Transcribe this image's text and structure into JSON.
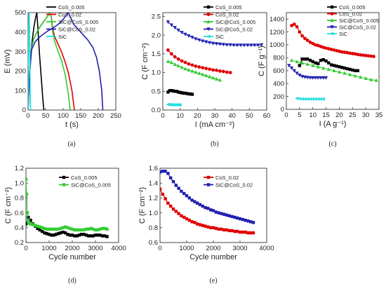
{
  "chart_data": [
    {
      "type": "line",
      "panel": "(a)",
      "xlabel": "t (s)",
      "ylabel": "E (mV)",
      "xlim": [
        0,
        250
      ],
      "ylim": [
        0,
        500
      ],
      "xticks": [
        "0",
        "50",
        "100",
        "150",
        "200",
        "250"
      ],
      "yticks": [
        "0",
        "100",
        "200",
        "300",
        "400",
        "500"
      ],
      "legend": "top-right",
      "series": [
        {
          "name": "CoS_0.005",
          "color": "#000000",
          "marker": "none",
          "x": [
            0,
            3,
            7,
            12,
            17,
            22,
            25,
            28,
            32,
            37,
            42,
            45
          ],
          "y": [
            0,
            150,
            270,
            360,
            430,
            480,
            500,
            420,
            300,
            180,
            60,
            0
          ]
        },
        {
          "name": "CoS_0.02",
          "color": "#e00000",
          "marker": "none",
          "x": [
            0,
            3,
            8,
            15,
            25,
            35,
            45,
            55,
            62,
            66,
            70,
            75,
            85,
            95,
            105,
            115,
            125,
            132
          ],
          "y": [
            0,
            150,
            300,
            360,
            400,
            430,
            455,
            480,
            500,
            480,
            420,
            380,
            340,
            300,
            250,
            190,
            100,
            0
          ]
        },
        {
          "name": "SiC@CoS_0.005",
          "color": "#33cc33",
          "marker": "none",
          "x": [
            0,
            3,
            8,
            15,
            25,
            35,
            45,
            55,
            62,
            66,
            70,
            76,
            86,
            96,
            106,
            114,
            120
          ],
          "y": [
            0,
            150,
            300,
            360,
            400,
            430,
            455,
            480,
            500,
            480,
            400,
            350,
            300,
            250,
            180,
            90,
            0
          ]
        },
        {
          "name": "SiC@CoS_0.02",
          "color": "#2020b0",
          "marker": "none",
          "x": [
            0,
            3,
            10,
            20,
            30,
            40,
            50,
            60,
            70,
            80,
            90,
            100,
            108,
            115,
            130,
            150,
            170,
            185,
            195,
            203,
            210,
            213
          ],
          "y": [
            0,
            150,
            310,
            350,
            370,
            385,
            398,
            410,
            420,
            432,
            446,
            465,
            485,
            500,
            440,
            400,
            360,
            320,
            270,
            200,
            100,
            0
          ]
        },
        {
          "name": "SiC",
          "color": "#22dddd",
          "marker": "none",
          "x": [
            0,
            1,
            2,
            3,
            4,
            5,
            6,
            7
          ],
          "y": [
            0,
            300,
            440,
            500,
            420,
            280,
            120,
            0
          ]
        }
      ]
    },
    {
      "type": "scatter",
      "panel": "(b)",
      "xlabel": "I (mA cm⁻²)",
      "ylabel": "C (F cm⁻²)",
      "xlim": [
        0,
        60
      ],
      "ylim": [
        0,
        2.6
      ],
      "xticks": [
        "0",
        "10",
        "20",
        "30",
        "40",
        "50",
        "60"
      ],
      "yticks": [
        "0.0",
        "0.5",
        "1.0",
        "1.5",
        "2.0",
        "2.5"
      ],
      "legend": "top-right",
      "series": [
        {
          "name": "CoS_0.005",
          "color": "#000000",
          "marker": "square",
          "x": [
            3,
            4,
            5,
            6,
            7,
            8,
            9,
            10,
            11,
            12,
            13,
            14,
            15,
            16,
            17
          ],
          "y": [
            0.48,
            0.52,
            0.52,
            0.51,
            0.5,
            0.5,
            0.48,
            0.47,
            0.46,
            0.45,
            0.45,
            0.44,
            0.43,
            0.43,
            0.42
          ]
        },
        {
          "name": "CoS_0.02",
          "color": "#e00000",
          "marker": "circle",
          "x": [
            3,
            5,
            7,
            9,
            11,
            13,
            15,
            17,
            19,
            21,
            23,
            25,
            27,
            29,
            31,
            33,
            35,
            37,
            39
          ],
          "y": [
            1.6,
            1.5,
            1.42,
            1.36,
            1.31,
            1.27,
            1.23,
            1.2,
            1.17,
            1.15,
            1.13,
            1.11,
            1.09,
            1.07,
            1.06,
            1.04,
            1.03,
            1.01,
            1.0
          ]
        },
        {
          "name": "SiC@CoS_0.005",
          "color": "#33cc33",
          "marker": "triangle-up",
          "x": [
            3,
            5,
            7,
            9,
            11,
            13,
            15,
            17,
            19,
            21,
            23,
            25,
            27,
            29,
            31,
            33
          ],
          "y": [
            1.3,
            1.27,
            1.22,
            1.18,
            1.14,
            1.1,
            1.07,
            1.04,
            1.01,
            0.98,
            0.95,
            0.92,
            0.89,
            0.86,
            0.83,
            0.8
          ]
        },
        {
          "name": "SiC@CoS_0.02",
          "color": "#2020b0",
          "marker": "triangle-down",
          "x": [
            3,
            5,
            7,
            9,
            11,
            13,
            15,
            17,
            19,
            21,
            23,
            25,
            27,
            29,
            31,
            33,
            35,
            37,
            39,
            41,
            43,
            45,
            47,
            49,
            51,
            53,
            55,
            57
          ],
          "y": [
            2.35,
            2.27,
            2.2,
            2.13,
            2.07,
            2.02,
            1.98,
            1.94,
            1.9,
            1.87,
            1.84,
            1.82,
            1.8,
            1.78,
            1.77,
            1.76,
            1.75,
            1.74,
            1.74,
            1.73,
            1.73,
            1.73,
            1.73,
            1.73,
            1.73,
            1.73,
            1.73,
            1.74
          ]
        },
        {
          "name": "SiC",
          "color": "#22dddd",
          "marker": "triangle-left",
          "x": [
            3,
            4,
            5,
            6,
            7,
            8,
            9,
            10
          ],
          "y": [
            0.15,
            0.15,
            0.14,
            0.14,
            0.14,
            0.14,
            0.14,
            0.14
          ]
        }
      ]
    },
    {
      "type": "scatter",
      "panel": "(c)",
      "xlabel": "I (A g⁻¹)",
      "ylabel": "C (F g⁻¹)",
      "xlim": [
        0,
        35
      ],
      "ylim": [
        0,
        1500
      ],
      "xticks": [
        "0",
        "5",
        "10",
        "15",
        "20",
        "25",
        "30",
        "35"
      ],
      "yticks": [
        "0",
        "200",
        "400",
        "600",
        "800",
        "1000",
        "1200",
        "1400"
      ],
      "legend": "top-right",
      "series": [
        {
          "name": "CoS_0.005",
          "color": "#000000",
          "marker": "square",
          "x": [
            5,
            6,
            7,
            8,
            9,
            10,
            11,
            12,
            13,
            14,
            15,
            16,
            17,
            18,
            19,
            20,
            21,
            22,
            23,
            24,
            25,
            26,
            27
          ],
          "y": [
            680,
            780,
            780,
            780,
            760,
            740,
            720,
            710,
            760,
            770,
            750,
            720,
            690,
            680,
            670,
            660,
            650,
            640,
            630,
            620,
            610,
            600,
            600
          ]
        },
        {
          "name": "CoS_0.02",
          "color": "#e00000",
          "marker": "circle",
          "x": [
            2,
            3,
            4,
            5,
            6,
            7,
            8,
            9,
            10,
            11,
            12,
            13,
            14,
            15,
            16,
            17,
            18,
            19,
            20,
            21,
            22,
            23,
            24,
            25,
            26,
            27,
            28,
            29,
            30,
            31,
            32,
            33
          ],
          "y": [
            1300,
            1320,
            1280,
            1200,
            1140,
            1100,
            1070,
            1040,
            1020,
            1000,
            990,
            975,
            960,
            950,
            940,
            930,
            920,
            910,
            900,
            890,
            885,
            880,
            870,
            865,
            860,
            850,
            845,
            840,
            835,
            830,
            825,
            820
          ]
        },
        {
          "name": "SiC@CoS_0.005",
          "color": "#33cc33",
          "marker": "triangle-up",
          "x": [
            2,
            4,
            6,
            8,
            10,
            12,
            14,
            16,
            18,
            20,
            22,
            24,
            26,
            28,
            30,
            32,
            34
          ],
          "y": [
            760,
            740,
            720,
            700,
            680,
            660,
            640,
            620,
            600,
            580,
            560,
            540,
            520,
            500,
            480,
            460,
            450
          ]
        },
        {
          "name": "SiC@CoS_0.02",
          "color": "#2020b0",
          "marker": "triangle-down",
          "x": [
            1,
            2,
            3,
            4,
            5,
            6,
            7,
            8,
            9,
            10,
            11,
            12,
            13,
            14,
            15
          ],
          "y": [
            680,
            640,
            600,
            560,
            530,
            510,
            500,
            495,
            490,
            490,
            490,
            490,
            490,
            490,
            490
          ]
        },
        {
          "name": "SiC",
          "color": "#22dddd",
          "marker": "triangle-left",
          "x": [
            4,
            5,
            6,
            7,
            8,
            9,
            10,
            11,
            12,
            13,
            14
          ],
          "y": [
            170,
            165,
            162,
            160,
            160,
            160,
            160,
            160,
            160,
            160,
            160
          ]
        }
      ]
    },
    {
      "type": "line",
      "panel": "(d)",
      "xlabel": "Cycle number",
      "ylabel": "C (F cm⁻²)",
      "xlim": [
        0,
        4000
      ],
      "ylim": [
        0.2,
        1.2
      ],
      "xticks": [
        "0",
        "1000",
        "2000",
        "3000",
        "4000"
      ],
      "yticks": [
        "0.2",
        "0.4",
        "0.6",
        "0.8",
        "1.0",
        "1.2"
      ],
      "legend": "top-right",
      "series": [
        {
          "name": "CoS_0.005",
          "color": "#000000",
          "marker": "square",
          "x": [
            0,
            100,
            200,
            300,
            400,
            500,
            600,
            700,
            800,
            900,
            1000,
            1100,
            1200,
            1300,
            1400,
            1500,
            1600,
            1700,
            1800,
            1900,
            2000,
            2100,
            2200,
            2300,
            2400,
            2500,
            2600,
            2700,
            2800,
            2900,
            3000,
            3100,
            3200,
            3300,
            3400,
            3500
          ],
          "y": [
            0.45,
            0.54,
            0.5,
            0.45,
            0.42,
            0.39,
            0.37,
            0.35,
            0.33,
            0.32,
            0.31,
            0.3,
            0.3,
            0.31,
            0.32,
            0.33,
            0.34,
            0.33,
            0.31,
            0.3,
            0.3,
            0.29,
            0.29,
            0.3,
            0.31,
            0.31,
            0.3,
            0.29,
            0.29,
            0.29,
            0.3,
            0.3,
            0.3,
            0.29,
            0.29,
            0.28
          ]
        },
        {
          "name": "SiC@CoS_0.005",
          "color": "#33cc33",
          "marker": "square",
          "x": [
            0,
            30,
            60,
            100,
            150,
            200,
            300,
            400,
            500,
            600,
            700,
            800,
            900,
            1000,
            1100,
            1200,
            1300,
            1400,
            1500,
            1600,
            1700,
            1800,
            1900,
            2000,
            2100,
            2200,
            2300,
            2400,
            2500,
            2600,
            2700,
            2800,
            2900,
            3000,
            3100,
            3200,
            3300,
            3400,
            3500
          ],
          "y": [
            1.05,
            0.85,
            0.6,
            0.5,
            0.46,
            0.45,
            0.44,
            0.43,
            0.42,
            0.41,
            0.4,
            0.39,
            0.38,
            0.38,
            0.38,
            0.38,
            0.38,
            0.38,
            0.39,
            0.4,
            0.41,
            0.4,
            0.39,
            0.38,
            0.37,
            0.37,
            0.37,
            0.37,
            0.37,
            0.38,
            0.38,
            0.39,
            0.38,
            0.37,
            0.37,
            0.38,
            0.39,
            0.39,
            0.38
          ]
        }
      ]
    },
    {
      "type": "line",
      "panel": "(e)",
      "xlabel": "Cycle number",
      "ylabel": "C (F cm⁻²)",
      "xlim": [
        0,
        4000
      ],
      "ylim": [
        0.6,
        1.6
      ],
      "xticks": [
        "0",
        "1000",
        "2000",
        "3000",
        "4000"
      ],
      "yticks": [
        "0.6",
        "0.8",
        "1.0",
        "1.2",
        "1.4",
        "1.6"
      ],
      "legend": "top-right",
      "series": [
        {
          "name": "CoS_0.02",
          "color": "#e00000",
          "marker": "square",
          "x": [
            0,
            100,
            200,
            300,
            400,
            500,
            600,
            700,
            800,
            900,
            1000,
            1100,
            1200,
            1300,
            1400,
            1500,
            1600,
            1700,
            1800,
            1900,
            2000,
            2100,
            2200,
            2300,
            2400,
            2500,
            2600,
            2700,
            2800,
            2900,
            3000,
            3100,
            3200,
            3300,
            3400,
            3500
          ],
          "y": [
            1.32,
            1.25,
            1.19,
            1.13,
            1.09,
            1.05,
            1.02,
            0.99,
            0.96,
            0.94,
            0.92,
            0.9,
            0.88,
            0.87,
            0.85,
            0.84,
            0.83,
            0.82,
            0.81,
            0.8,
            0.8,
            0.79,
            0.78,
            0.78,
            0.77,
            0.77,
            0.76,
            0.76,
            0.75,
            0.75,
            0.74,
            0.74,
            0.74,
            0.73,
            0.73,
            0.73
          ]
        },
        {
          "name": "SiC@CoS_0.02",
          "color": "#2020b0",
          "marker": "square",
          "x": [
            0,
            100,
            200,
            300,
            400,
            500,
            600,
            700,
            800,
            900,
            1000,
            1100,
            1200,
            1300,
            1400,
            1500,
            1600,
            1700,
            1800,
            1900,
            2000,
            2100,
            2200,
            2300,
            2400,
            2500,
            2600,
            2700,
            2800,
            2900,
            3000,
            3100,
            3200,
            3300,
            3400,
            3500
          ],
          "y": [
            1.55,
            1.56,
            1.56,
            1.53,
            1.47,
            1.42,
            1.37,
            1.33,
            1.29,
            1.26,
            1.23,
            1.2,
            1.17,
            1.15,
            1.13,
            1.11,
            1.09,
            1.07,
            1.06,
            1.04,
            1.03,
            1.01,
            1.0,
            0.99,
            0.98,
            0.97,
            0.96,
            0.95,
            0.94,
            0.93,
            0.92,
            0.91,
            0.9,
            0.89,
            0.88,
            0.87
          ]
        }
      ]
    }
  ]
}
